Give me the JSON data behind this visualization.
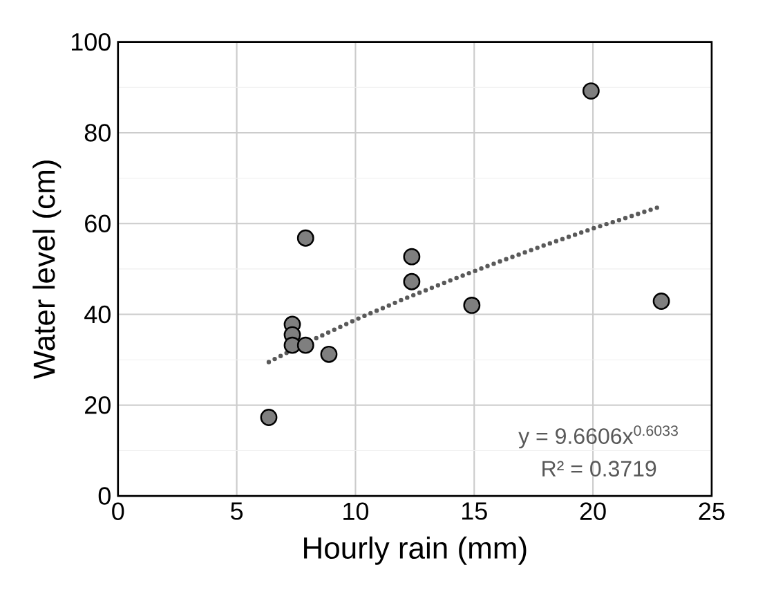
{
  "chart_data": {
    "type": "scatter",
    "xlabel": "Hourly rain (mm)",
    "ylabel": "Water level (cm)",
    "xlim": [
      0,
      25
    ],
    "ylim": [
      0,
      100
    ],
    "xticks": [
      0,
      5,
      10,
      15,
      20,
      25
    ],
    "yticks": [
      0,
      20,
      40,
      60,
      80,
      100
    ],
    "grid": true,
    "marker": "circle",
    "series": [
      {
        "color": "#7f7f7f",
        "x": [
          6.35,
          7.9,
          7.34,
          7.34,
          7.34,
          7.9,
          8.88,
          12.37,
          12.37,
          14.9,
          19.92,
          22.88
        ],
        "values": [
          17.3,
          56.8,
          37.8,
          35.5,
          33.2,
          33.2,
          31.2,
          52.7,
          47.2,
          42,
          89.2,
          42.9
        ]
      },
      {
        "type": "line",
        "color": "#595959",
        "marker": "none",
        "line_style": "dotted",
        "x": [
          6.35,
          8,
          10,
          12,
          14,
          16,
          18,
          20,
          22.88
        ],
        "values": [
          29.5,
          33.9,
          38.8,
          43.3,
          47.5,
          51.5,
          55.3,
          58.9,
          63.8
        ]
      }
    ],
    "annotations": [
      "y = 9.6606x$^{0.6033}$",
      "R² = 0.3719"
    ]
  }
}
